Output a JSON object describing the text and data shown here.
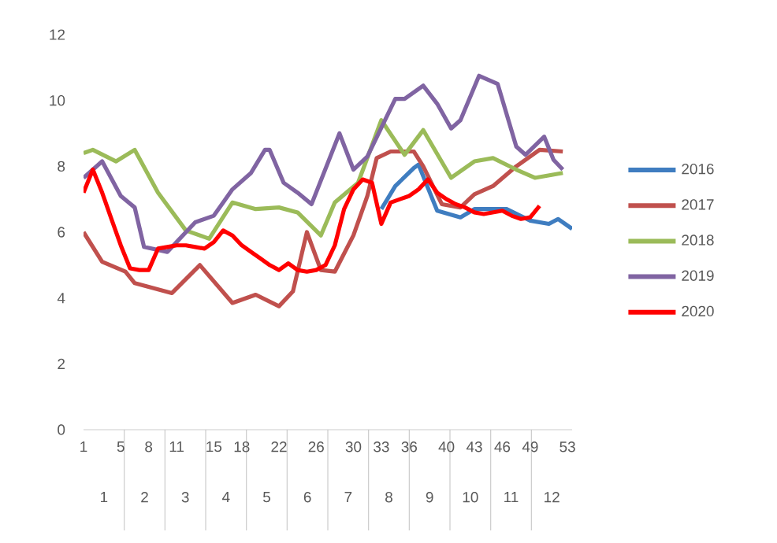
{
  "chart_data": {
    "type": "line",
    "xlim": [
      1,
      53.5
    ],
    "ylim": [
      0,
      12
    ],
    "xticks": [
      1,
      5,
      8,
      11,
      15,
      18,
      22,
      26,
      30,
      33,
      36,
      40,
      43,
      46,
      49,
      53
    ],
    "yticks": [
      0,
      2,
      4,
      6,
      8,
      10,
      12
    ],
    "x2lim": [
      0.5,
      12.5
    ],
    "x2ticks": [
      1,
      2,
      3,
      4,
      5,
      6,
      7,
      8,
      9,
      10,
      11,
      12
    ],
    "legend": "right",
    "marker": "none",
    "line_style": "solid",
    "series": [
      {
        "name": "2016",
        "color": "#3f7dc0",
        "x": [
          33,
          34.5,
          36.5,
          37,
          39,
          41.5,
          43,
          46.5,
          49,
          51,
          52,
          53.5
        ],
        "values": [
          6.7,
          7.4,
          7.95,
          8.05,
          6.65,
          6.45,
          6.7,
          6.7,
          6.35,
          6.25,
          6.4,
          6.1
        ]
      },
      {
        "name": "2017",
        "color": "#c0504d",
        "x": [
          1,
          3,
          5.5,
          6.5,
          10.5,
          13.5,
          17,
          19.5,
          22,
          23.5,
          25,
          26.5,
          28,
          30,
          31.5,
          32.5,
          34,
          36.5,
          37.5,
          39.5,
          41.5,
          43,
          45,
          47.5,
          50,
          52.5
        ],
        "values": [
          6.0,
          5.1,
          4.8,
          4.45,
          4.15,
          5.0,
          3.85,
          4.1,
          3.75,
          4.2,
          6.0,
          4.85,
          4.8,
          5.9,
          7.1,
          8.25,
          8.45,
          8.45,
          8.0,
          6.85,
          6.75,
          7.15,
          7.4,
          8.0,
          8.5,
          8.45
        ]
      },
      {
        "name": "2018",
        "color": "#9bbb59",
        "x": [
          1,
          2,
          4.5,
          6.5,
          9,
          12,
          14.5,
          17,
          19.5,
          22,
          24,
          26.5,
          28,
          30.5,
          33,
          35.5,
          37.5,
          40.5,
          43,
          45,
          47.5,
          49.5,
          52.5
        ],
        "values": [
          8.4,
          8.5,
          8.15,
          8.5,
          7.2,
          6.05,
          5.8,
          6.9,
          6.7,
          6.75,
          6.6,
          5.9,
          6.9,
          7.5,
          9.4,
          8.35,
          9.1,
          7.65,
          8.15,
          8.25,
          7.9,
          7.65,
          7.8
        ]
      },
      {
        "name": "2019",
        "color": "#8064a2",
        "x": [
          1,
          3,
          5,
          6.5,
          7.5,
          10,
          13,
          15,
          17,
          19,
          20.5,
          21,
          22.5,
          24,
          25.5,
          28.5,
          30,
          31.5,
          34.5,
          35.5,
          37.5,
          39,
          40.5,
          41.5,
          43.5,
          45.5,
          47.5,
          48.5,
          50.5,
          51.5,
          52.5
        ],
        "values": [
          7.65,
          8.15,
          7.1,
          6.75,
          5.55,
          5.4,
          6.3,
          6.5,
          7.3,
          7.8,
          8.5,
          8.5,
          7.5,
          7.2,
          6.85,
          9.0,
          7.9,
          8.3,
          10.05,
          10.05,
          10.45,
          9.9,
          9.15,
          9.4,
          10.75,
          10.5,
          8.6,
          8.35,
          8.9,
          8.2,
          7.9
        ]
      },
      {
        "name": "2020",
        "color": "#ff0000",
        "x": [
          1,
          2,
          3,
          4,
          5,
          6,
          7,
          8,
          9,
          10,
          11,
          12,
          13,
          14,
          15,
          16,
          17,
          18,
          19,
          20,
          21,
          22,
          23,
          24,
          25,
          26,
          27,
          28,
          29,
          30,
          31,
          32,
          33,
          34,
          35,
          36,
          37,
          38,
          39,
          40,
          41,
          42,
          43,
          44,
          45,
          46,
          47,
          48,
          49,
          50
        ],
        "values": [
          7.2,
          7.9,
          7.2,
          6.4,
          5.6,
          4.9,
          4.85,
          4.85,
          5.5,
          5.55,
          5.6,
          5.6,
          5.55,
          5.5,
          5.7,
          6.05,
          5.9,
          5.6,
          5.4,
          5.2,
          5.0,
          4.85,
          5.05,
          4.85,
          4.8,
          4.85,
          5.0,
          5.6,
          6.7,
          7.3,
          7.6,
          7.5,
          6.25,
          6.9,
          7.0,
          7.1,
          7.3,
          7.6,
          7.2,
          7.0,
          6.85,
          6.75,
          6.6,
          6.55,
          6.6,
          6.65,
          6.5,
          6.4,
          6.45,
          6.8
        ]
      }
    ]
  }
}
